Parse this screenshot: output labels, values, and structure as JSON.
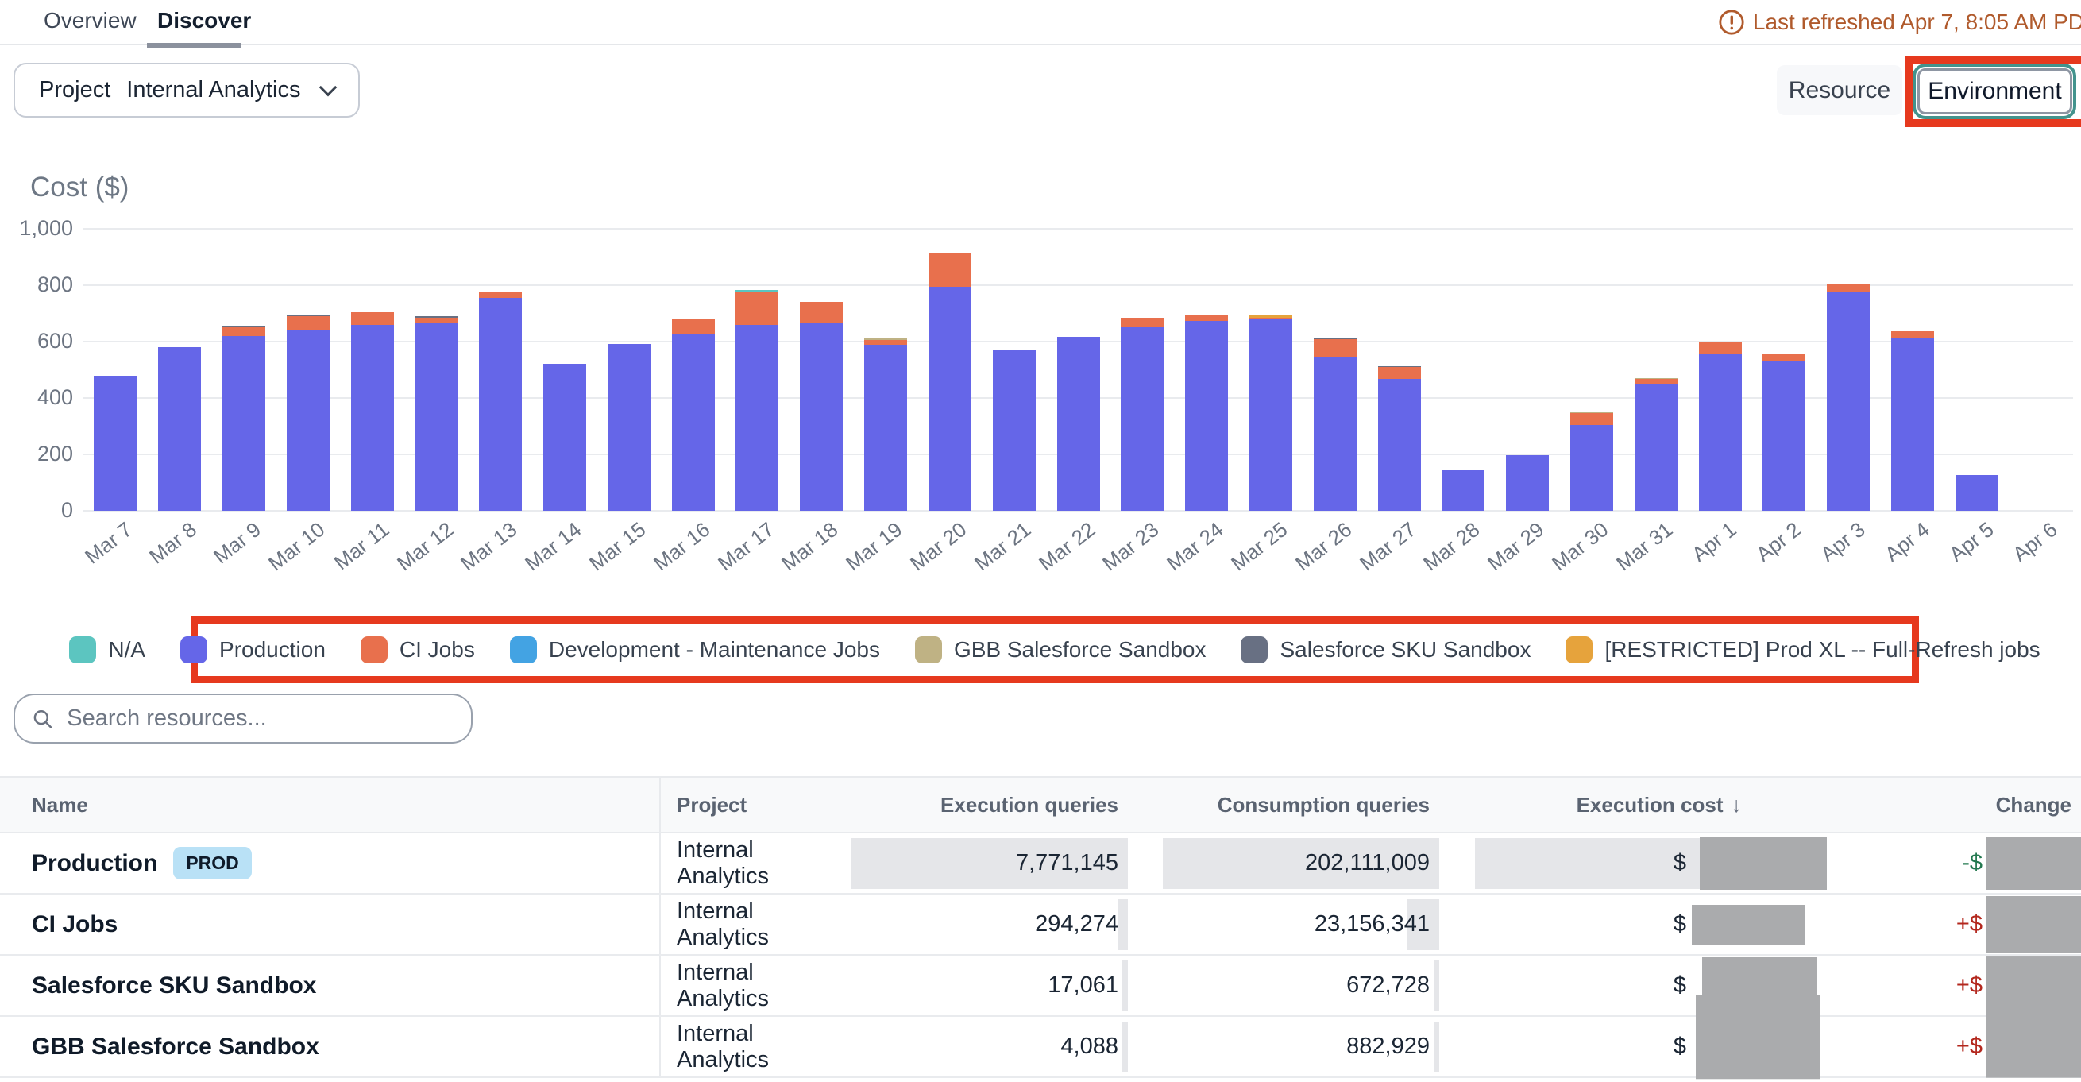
{
  "tabs": {
    "overview": "Overview",
    "discover": "Discover"
  },
  "status": {
    "last_refreshed": "Last refreshed Apr 7, 8:05 AM PD"
  },
  "toolbar": {
    "project_label": "Project",
    "project_value": "Internal Analytics",
    "resource_label": "Resource",
    "environment_label": "Environment"
  },
  "annotation": {
    "color": "#e6391e",
    "targets": [
      "environment-button",
      "chart-legend"
    ]
  },
  "chart_data": {
    "type": "bar",
    "stacked": true,
    "title": "Cost ($)",
    "ylim": [
      0,
      1000
    ],
    "yticks": [
      {
        "value": 0,
        "label": "0"
      },
      {
        "value": 200,
        "label": "200"
      },
      {
        "value": 400,
        "label": "400"
      },
      {
        "value": 600,
        "label": "600"
      },
      {
        "value": 800,
        "label": "800"
      },
      {
        "value": 1000,
        "label": "1,000"
      }
    ],
    "categories": [
      "Mar 7",
      "Mar 8",
      "Mar 9",
      "Mar 10",
      "Mar 11",
      "Mar 12",
      "Mar 13",
      "Mar 14",
      "Mar 15",
      "Mar 16",
      "Mar 17",
      "Mar 18",
      "Mar 19",
      "Mar 20",
      "Mar 21",
      "Mar 22",
      "Mar 23",
      "Mar 24",
      "Mar 25",
      "Mar 26",
      "Mar 27",
      "Mar 28",
      "Mar 29",
      "Mar 30",
      "Mar 31",
      "Apr 1",
      "Apr 2",
      "Apr 3",
      "Apr 4",
      "Apr 5",
      "Apr 6"
    ],
    "series": [
      {
        "name": "Production",
        "color": "#6566e8",
        "values": [
          480,
          580,
          620,
          640,
          660,
          668,
          755,
          520,
          592,
          625,
          658,
          668,
          590,
          795,
          572,
          618,
          650,
          672,
          678,
          545,
          468,
          148,
          197,
          305,
          448,
          555,
          532,
          775,
          612,
          128,
          0
        ]
      },
      {
        "name": "CI Jobs",
        "color": "#e8704d",
        "values": [
          0,
          0,
          30,
          50,
          43,
          18,
          20,
          0,
          0,
          57,
          120,
          74,
          16,
          120,
          0,
          0,
          35,
          22,
          8,
          64,
          42,
          0,
          0,
          42,
          20,
          42,
          26,
          28,
          26,
          0,
          0
        ]
      },
      {
        "name": "Salesforce SKU Sandbox",
        "color": "#687083",
        "values": [
          0,
          0,
          7,
          6,
          0,
          4,
          0,
          0,
          0,
          0,
          0,
          0,
          0,
          0,
          0,
          0,
          0,
          0,
          0,
          4,
          3,
          0,
          0,
          0,
          0,
          0,
          0,
          0,
          0,
          0,
          0
        ]
      },
      {
        "name": "GBB Salesforce Sandbox",
        "color": "#bfb284",
        "values": [
          0,
          0,
          0,
          0,
          0,
          0,
          0,
          0,
          0,
          0,
          0,
          0,
          5,
          0,
          0,
          0,
          0,
          0,
          0,
          0,
          0,
          0,
          0,
          4,
          4,
          0,
          0,
          4,
          0,
          0,
          0
        ]
      },
      {
        "name": "[RESTRICTED] Prod XL -- Full-Refresh jobs",
        "color": "#e6a33c",
        "values": [
          0,
          0,
          0,
          0,
          0,
          0,
          0,
          0,
          0,
          0,
          0,
          0,
          0,
          0,
          0,
          0,
          0,
          0,
          8,
          0,
          0,
          0,
          0,
          0,
          0,
          0,
          0,
          0,
          0,
          0,
          0
        ]
      },
      {
        "name": "N/A",
        "color": "#5cc5c0",
        "values": [
          0,
          0,
          0,
          0,
          0,
          0,
          0,
          0,
          0,
          0,
          4,
          0,
          0,
          0,
          0,
          0,
          0,
          0,
          0,
          0,
          0,
          0,
          0,
          0,
          0,
          0,
          0,
          0,
          0,
          0,
          0
        ]
      },
      {
        "name": "Development - Maintenance Jobs",
        "color": "#43a3e3",
        "values": [
          0,
          0,
          0,
          0,
          0,
          0,
          0,
          0,
          0,
          0,
          0,
          0,
          0,
          0,
          0,
          0,
          0,
          0,
          0,
          0,
          0,
          0,
          0,
          0,
          0,
          0,
          0,
          0,
          0,
          0,
          0
        ]
      }
    ],
    "legend_order": [
      "N/A",
      "Production",
      "CI Jobs",
      "Development - Maintenance Jobs",
      "GBB Salesforce Sandbox",
      "Salesforce SKU Sandbox",
      "[RESTRICTED] Prod XL -- Full-Refresh jobs"
    ],
    "legend_position": "bottom",
    "grid": true
  },
  "search": {
    "placeholder": "Search resources..."
  },
  "table": {
    "columns": [
      "Name",
      "Project",
      "Execution queries",
      "Consumption queries",
      "Execution cost",
      "Change"
    ],
    "sort_column": "Execution cost",
    "sort_icon": "↓",
    "rows": [
      {
        "name": "Production",
        "badge": "PROD",
        "project": "Internal Analytics",
        "execution_queries": "7,771,145",
        "consumption_queries": "202,111,009",
        "execution_cost_prefix": "$",
        "cost_redacted": true,
        "cost_bar_full": true,
        "change_prefix": "-$",
        "change_direction": "down",
        "change_redacted": true
      },
      {
        "name": "CI Jobs",
        "badge": "",
        "project": "Internal Analytics",
        "execution_queries": "294,274",
        "consumption_queries": "23,156,341",
        "execution_cost_prefix": "$",
        "cost_redacted": true,
        "cost_bar_full": false,
        "change_prefix": "+$",
        "change_direction": "up",
        "change_redacted": true
      },
      {
        "name": "Salesforce SKU Sandbox",
        "badge": "",
        "project": "Internal Analytics",
        "execution_queries": "17,061",
        "consumption_queries": "672,728",
        "execution_cost_prefix": "$",
        "cost_redacted": true,
        "cost_bar_full": false,
        "change_prefix": "+$",
        "change_direction": "up",
        "change_redacted": true
      },
      {
        "name": "GBB Salesforce Sandbox",
        "badge": "",
        "project": "Internal Analytics",
        "execution_queries": "4,088",
        "consumption_queries": "882,929",
        "execution_cost_prefix": "$",
        "cost_redacted": true,
        "cost_bar_full": false,
        "change_prefix": "+$",
        "change_direction": "up",
        "change_redacted": true
      }
    ]
  }
}
